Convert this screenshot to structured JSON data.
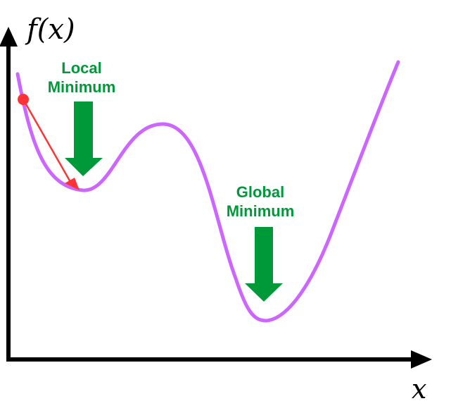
{
  "diagram": {
    "y_axis_label": "f(x)",
    "x_axis_label": "x",
    "local_minimum": {
      "line1": "Local",
      "line2": "Minimum"
    },
    "global_minimum": {
      "line1": "Global",
      "line2": "Minimum"
    }
  },
  "colors": {
    "axis": "#000000",
    "curve": "#cc66ff",
    "annotation": "#00993a",
    "gradient_step": "#ff3333"
  },
  "icons": {
    "down_arrow": "down-arrow-icon",
    "start_point": "red-dot"
  }
}
